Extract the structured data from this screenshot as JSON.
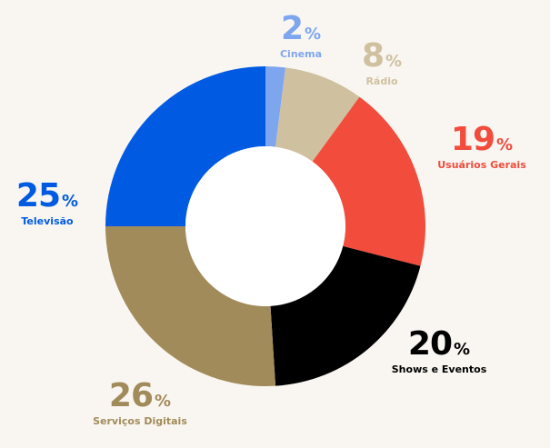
{
  "chart_data": {
    "type": "pie",
    "variant": "donut",
    "unit": "%",
    "slices": [
      {
        "label": "Cinema",
        "value": 2,
        "color": "#7ea6ef"
      },
      {
        "label": "Rádio",
        "value": 8,
        "color": "#cfc09f"
      },
      {
        "label": "Usuários Gerais",
        "value": 19,
        "color": "#f14c3c"
      },
      {
        "label": "Shows e Eventos",
        "value": 20,
        "color": "#000000"
      },
      {
        "label": "Serviços Digitais",
        "value": 26,
        "color": "#a28b5a"
      },
      {
        "label": "Televisão",
        "value": 25,
        "color": "#005be2"
      }
    ],
    "label_colors": {
      "Cinema": "#7ea6ef",
      "Rádio": "#cfc09f",
      "Usuários Gerais": "#f14c3c",
      "Shows e Eventos": "#000000",
      "Serviços Digitais": "#a28b5a",
      "Televisão": "#005be2"
    }
  }
}
